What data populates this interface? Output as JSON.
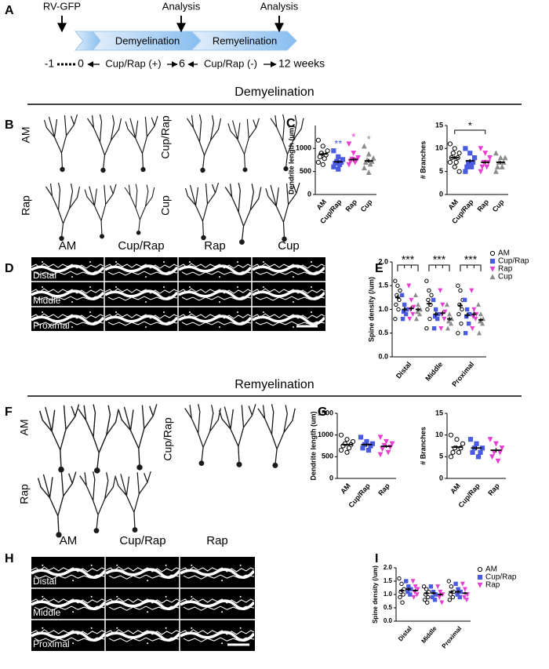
{
  "panel_labels": [
    "A",
    "B",
    "C",
    "D",
    "E",
    "F",
    "G",
    "H",
    "I"
  ],
  "timeline": {
    "injection": "RV-GFP",
    "analysis": [
      "Analysis",
      "Analysis"
    ],
    "phases": [
      "Demyelination",
      "Remyelination"
    ],
    "weeks": [
      "-1",
      "0",
      "6",
      "12 weeks"
    ],
    "treatments": [
      "Cup/Rap (+)",
      "Cup/Rap (-)"
    ]
  },
  "sections": [
    "Demyelination",
    "Remyelination"
  ],
  "neurons_B": [
    "AM",
    "Cup/Rap",
    "Rap",
    "Cup"
  ],
  "neurons_F": [
    "AM",
    "Cup/Rap",
    "Rap"
  ],
  "images_D": {
    "columns": [
      "AM",
      "Cup/Rap",
      "Rap",
      "Cup"
    ],
    "rows": [
      "Distal",
      "Middle",
      "Proximal"
    ]
  },
  "images_H": {
    "columns": [
      "AM",
      "Cup/Rap",
      "Rap"
    ],
    "rows": [
      "Distal",
      "Middle",
      "Proximal"
    ]
  },
  "chart_data": [
    {
      "type": "dotplot",
      "y_label": "Dendrite length (um)",
      "categories": [
        "AM",
        "Cup/Rap",
        "Rap",
        "Cup"
      ],
      "ylim": [
        0,
        1500
      ],
      "yticks": [
        0,
        500,
        1000
      ],
      "colors": [
        "#000000",
        "#4a5be0",
        "#e83fd0",
        "#8c8c8c"
      ],
      "markers": [
        "circle",
        "square",
        "triangle-down",
        "triangle"
      ],
      "values": [
        880,
        710,
        760,
        730
      ],
      "errors": [
        45,
        30,
        35,
        40
      ],
      "points": [
        [
          1180,
          1050,
          950,
          900,
          860,
          820,
          780,
          700,
          650
        ],
        [
          950,
          820,
          760,
          720,
          700,
          680,
          650,
          600,
          550
        ],
        [
          1100,
          900,
          800,
          770,
          750,
          720,
          700,
          650
        ],
        [
          1050,
          880,
          790,
          750,
          720,
          700,
          660,
          580,
          480
        ]
      ],
      "significance": [
        null,
        "**",
        "*",
        "*"
      ]
    },
    {
      "type": "dotplot",
      "y_label": "# Branches",
      "categories": [
        "AM",
        "Cup/Rap",
        "Rap",
        "Cup"
      ],
      "ylim": [
        0,
        15
      ],
      "yticks": [
        0,
        5,
        10,
        15
      ],
      "colors": [
        "#000000",
        "#4a5be0",
        "#e83fd0",
        "#8c8c8c"
      ],
      "markers": [
        "circle",
        "square",
        "triangle-down",
        "triangle"
      ],
      "values": [
        8,
        7.3,
        7,
        7
      ],
      "errors": [
        0.4,
        0.4,
        0.4,
        0.3
      ],
      "points": [
        [
          11,
          10,
          9,
          9,
          8,
          8,
          7,
          7,
          6,
          5
        ],
        [
          10,
          9,
          8,
          7,
          7,
          6,
          6,
          5
        ],
        [
          10,
          9,
          8,
          7,
          7,
          6,
          6,
          5
        ],
        [
          9,
          8,
          8,
          7,
          7,
          6,
          6,
          5
        ]
      ],
      "brackets": [
        {
          "from": "AM",
          "to": "Rap",
          "label": "*"
        }
      ]
    },
    {
      "type": "grouped_dotplot",
      "y_label": "Spine density (/um)",
      "categories": [
        "Distal",
        "Middle",
        "Proximal"
      ],
      "ylim": [
        0,
        2
      ],
      "yticks": [
        {
          "value": 0,
          "label": "0.0"
        },
        0.5,
        {
          "value": 1,
          "label": "1.0"
        },
        1.5,
        {
          "value": 2,
          "label": "2.0"
        }
      ],
      "series": [
        {
          "name": "AM",
          "color": "#000000",
          "marker": "circle",
          "values": [
            1.25,
            1.12,
            1.08
          ],
          "errors": [
            0.05,
            0.06,
            0.06
          ],
          "points": [
            [
              1.6,
              1.5,
              1.4,
              1.3,
              1.2,
              1.1,
              1.0,
              0.8
            ],
            [
              1.6,
              1.4,
              1.3,
              1.2,
              1.1,
              1.0,
              0.8,
              0.6
            ],
            [
              1.5,
              1.4,
              1.2,
              1.1,
              1.0,
              0.9,
              0.7,
              0.5
            ]
          ]
        },
        {
          "name": "Cup/Rap",
          "color": "#4a5be0",
          "marker": "square",
          "values": [
            1.0,
            0.9,
            0.88
          ],
          "errors": [
            0.05,
            0.05,
            0.05
          ],
          "points": [
            [
              1.3,
              1.1,
              1.0,
              0.95,
              0.9,
              0.8
            ],
            [
              1.2,
              1.0,
              0.9,
              0.85,
              0.8,
              0.6
            ],
            [
              1.2,
              1.0,
              0.9,
              0.85,
              0.7,
              0.5
            ]
          ]
        },
        {
          "name": "Rap",
          "color": "#e83fd0",
          "marker": "triangle-down",
          "values": [
            1.02,
            0.92,
            0.9
          ],
          "errors": [
            0.05,
            0.05,
            0.05
          ],
          "points": [
            [
              1.5,
              1.2,
              1.05,
              1.0,
              0.9,
              0.8
            ],
            [
              1.4,
              1.1,
              0.95,
              0.9,
              0.8,
              0.6
            ],
            [
              1.4,
              1.0,
              0.9,
              0.85,
              0.8,
              0.6
            ]
          ]
        },
        {
          "name": "Cup",
          "color": "#8c8c8c",
          "marker": "triangle",
          "values": [
            1.0,
            0.8,
            0.78
          ],
          "errors": [
            0.04,
            0.04,
            0.04
          ],
          "points": [
            [
              1.3,
              1.1,
              1.0,
              0.95,
              0.9,
              0.8
            ],
            [
              1.1,
              0.9,
              0.8,
              0.75,
              0.7,
              0.6
            ],
            [
              1.1,
              0.9,
              0.8,
              0.75,
              0.7,
              0.5
            ]
          ]
        }
      ],
      "significance": [
        "***",
        "***",
        "***"
      ]
    },
    {
      "type": "dotplot",
      "y_label": "Dendrite length (um)",
      "categories": [
        "AM",
        "Cup/Rap",
        "Rap"
      ],
      "ylim": [
        0,
        1500
      ],
      "yticks": [
        0,
        500,
        1000,
        1500
      ],
      "colors": [
        "#000000",
        "#4a5be0",
        "#e83fd0"
      ],
      "markers": [
        "circle",
        "square",
        "triangle-down"
      ],
      "values": [
        780,
        780,
        740
      ],
      "errors": [
        30,
        35,
        35
      ],
      "points": [
        [
          1000,
          900,
          850,
          800,
          780,
          750,
          700,
          650,
          600
        ],
        [
          950,
          850,
          800,
          780,
          750,
          700,
          650
        ],
        [
          950,
          850,
          800,
          760,
          720,
          680,
          600,
          550
        ]
      ]
    },
    {
      "type": "dotplot",
      "y_label": "# Branches",
      "categories": [
        "AM",
        "Cup/Rap",
        "Rap"
      ],
      "ylim": [
        0,
        15
      ],
      "yticks": [
        0,
        5,
        10,
        15
      ],
      "colors": [
        "#000000",
        "#4a5be0",
        "#e83fd0"
      ],
      "markers": [
        "circle",
        "square",
        "triangle-down"
      ],
      "values": [
        7.2,
        7,
        6.5
      ],
      "errors": [
        0.4,
        0.4,
        0.5
      ],
      "points": [
        [
          10,
          9,
          8,
          7,
          7,
          6,
          6,
          5
        ],
        [
          9,
          8,
          7,
          7,
          6,
          6,
          5
        ],
        [
          9,
          8,
          7,
          6,
          6,
          5,
          4
        ]
      ]
    },
    {
      "type": "grouped_dotplot",
      "y_label": "Spine density (/um)",
      "categories": [
        "Distal",
        "Middle",
        "Proximal"
      ],
      "ylim": [
        0,
        2
      ],
      "yticks": [
        {
          "value": 0,
          "label": "0.0"
        },
        0.5,
        {
          "value": 1,
          "label": "1.0"
        },
        1.5,
        {
          "value": 2,
          "label": "2.0"
        }
      ],
      "series": [
        {
          "name": "AM",
          "color": "#000000",
          "marker": "circle",
          "values": [
            1.15,
            1.05,
            1.1
          ],
          "errors": [
            0.06,
            0.05,
            0.06
          ],
          "points": [
            [
              1.6,
              1.4,
              1.2,
              1.1,
              1.0,
              0.9,
              0.7
            ],
            [
              1.3,
              1.2,
              1.1,
              1.0,
              0.9,
              0.8,
              0.7
            ],
            [
              1.5,
              1.3,
              1.1,
              1.0,
              0.9,
              0.8
            ]
          ]
        },
        {
          "name": "Cup/Rap",
          "color": "#4a5be0",
          "marker": "square",
          "values": [
            1.2,
            1.05,
            1.1
          ],
          "errors": [
            0.06,
            0.05,
            0.06
          ],
          "points": [
            [
              1.5,
              1.3,
              1.2,
              1.1,
              1.0
            ],
            [
              1.3,
              1.1,
              1.0,
              0.9,
              0.8
            ],
            [
              1.4,
              1.2,
              1.1,
              1.0,
              0.9
            ]
          ]
        },
        {
          "name": "Rap",
          "color": "#e83fd0",
          "marker": "triangle-down",
          "values": [
            1.15,
            1.0,
            1.05
          ],
          "errors": [
            0.05,
            0.05,
            0.05
          ],
          "points": [
            [
              1.5,
              1.3,
              1.2,
              1.1,
              1.0,
              0.9
            ],
            [
              1.3,
              1.1,
              1.0,
              0.9,
              0.7
            ],
            [
              1.4,
              1.2,
              1.0,
              0.9,
              0.8
            ]
          ]
        }
      ]
    }
  ]
}
